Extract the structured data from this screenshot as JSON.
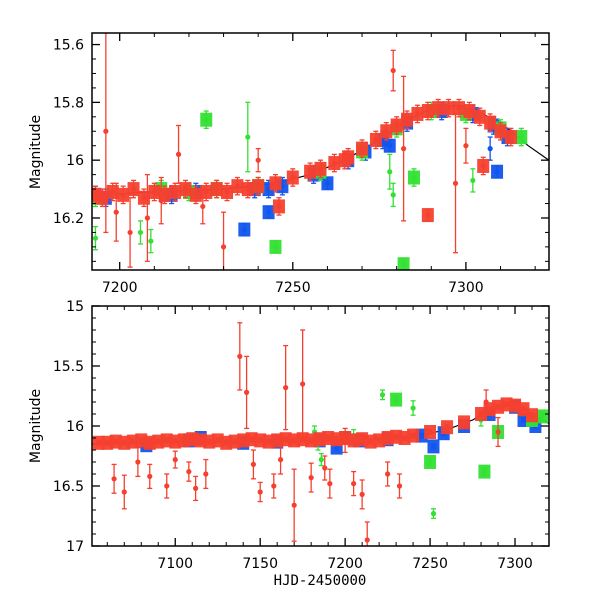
{
  "colors": {
    "series_red": "#F5402F",
    "series_blue": "#1155EE",
    "series_green": "#33E033",
    "model": "#000000",
    "axes": "#000000"
  },
  "chart_data": [
    {
      "type": "scatter",
      "title": "",
      "xlabel": "",
      "ylabel": "Magnitude",
      "xlim": [
        7192,
        7324
      ],
      "ylim": [
        16.38,
        15.56
      ],
      "y_inverted": true,
      "xticks": [
        7200,
        7250,
        7300
      ],
      "xtick_labels": [
        "7200",
        "7250",
        "7300"
      ],
      "yticks": [
        15.6,
        15.8,
        16,
        16.2
      ],
      "ytick_labels": [
        "15.6",
        "15.8",
        "16",
        "16.2"
      ],
      "grid": false,
      "legend": "none",
      "model": {
        "name": "model",
        "x": [
          7192,
          7210,
          7230,
          7245,
          7255,
          7265,
          7275,
          7282,
          7290,
          7298,
          7305,
          7312,
          7318,
          7324
        ],
        "y": [
          16.12,
          16.11,
          16.1,
          16.08,
          16.05,
          16.0,
          15.93,
          15.87,
          15.82,
          15.81,
          15.84,
          15.89,
          15.95,
          16.0
        ]
      },
      "series": [
        {
          "name": "red",
          "x": [
            7193,
            7195,
            7198,
            7201,
            7204,
            7207,
            7210,
            7213,
            7216,
            7219,
            7222,
            7225,
            7228,
            7231,
            7234,
            7237,
            7240,
            7245,
            7250,
            7255,
            7258,
            7262,
            7266,
            7270,
            7274,
            7277,
            7280,
            7283,
            7286,
            7289,
            7292,
            7295,
            7298,
            7301,
            7304,
            7307,
            7310,
            7313,
            7196,
            7199,
            7203,
            7208,
            7212,
            7217,
            7224,
            7230,
            7240,
            7246,
            7265,
            7279,
            7282,
            7289,
            7297,
            7300,
            7305
          ],
          "y": [
            16.12,
            16.13,
            16.11,
            16.12,
            16.1,
            16.13,
            16.11,
            16.12,
            16.11,
            16.1,
            16.12,
            16.11,
            16.1,
            16.11,
            16.09,
            16.1,
            16.09,
            16.08,
            16.06,
            16.04,
            16.03,
            16.01,
            15.99,
            15.96,
            15.93,
            15.9,
            15.88,
            15.86,
            15.84,
            15.83,
            15.82,
            15.82,
            15.82,
            15.83,
            15.85,
            15.87,
            15.9,
            15.92,
            15.9,
            16.18,
            16.25,
            16.2,
            16.14,
            15.98,
            16.16,
            16.3,
            16.0,
            16.16,
            16.0,
            15.69,
            15.96,
            16.19,
            16.08,
            15.95,
            16.02
          ],
          "err": [
            0.03,
            0.03,
            0.03,
            0.03,
            0.03,
            0.03,
            0.03,
            0.03,
            0.03,
            0.03,
            0.03,
            0.03,
            0.03,
            0.03,
            0.03,
            0.03,
            0.03,
            0.03,
            0.03,
            0.03,
            0.03,
            0.03,
            0.03,
            0.03,
            0.03,
            0.03,
            0.03,
            0.03,
            0.03,
            0.03,
            0.03,
            0.03,
            0.03,
            0.03,
            0.03,
            0.03,
            0.03,
            0.03,
            0.35,
            0.1,
            0.12,
            0.15,
            0.08,
            0.1,
            0.06,
            0.12,
            0.04,
            0.03,
            0.03,
            0.07,
            0.25,
            0.02,
            0.24,
            0.06,
            0.03
          ]
        },
        {
          "name": "blue",
          "x": [
            7193,
            7196,
            7215,
            7222,
            7239,
            7243,
            7247,
            7256,
            7266,
            7271,
            7276,
            7283,
            7293,
            7302,
            7308,
            7312,
            7236,
            7243,
            7260,
            7278,
            7307,
            7309
          ],
          "y": [
            16.12,
            16.13,
            16.12,
            16.11,
            16.1,
            16.1,
            16.09,
            16.05,
            16.0,
            15.97,
            15.93,
            15.87,
            15.83,
            15.84,
            15.88,
            15.92,
            16.24,
            16.18,
            16.08,
            15.95,
            15.96,
            16.04
          ],
          "err": [
            0.03,
            0.03,
            0.03,
            0.03,
            0.03,
            0.03,
            0.03,
            0.03,
            0.03,
            0.03,
            0.03,
            0.03,
            0.03,
            0.03,
            0.03,
            0.03,
            0.02,
            0.02,
            0.02,
            0.02,
            0.04,
            0.02
          ]
        },
        {
          "name": "green",
          "x": [
            7193,
            7212,
            7220,
            7228,
            7240,
            7258,
            7270,
            7280,
            7290,
            7300,
            7310,
            7316,
            7193,
            7206,
            7209,
            7225,
            7237,
            7245,
            7278,
            7279,
            7282,
            7285,
            7302
          ],
          "y": [
            16.13,
            16.1,
            16.11,
            16.1,
            16.09,
            16.04,
            15.97,
            15.89,
            15.83,
            15.84,
            15.89,
            15.92,
            16.27,
            16.25,
            16.28,
            15.86,
            15.92,
            16.3,
            16.04,
            16.12,
            16.36,
            16.06,
            16.07
          ],
          "err": [
            0.03,
            0.03,
            0.03,
            0.03,
            0.03,
            0.03,
            0.03,
            0.03,
            0.03,
            0.03,
            0.03,
            0.03,
            0.04,
            0.04,
            0.04,
            0.03,
            0.12,
            0.02,
            0.06,
            0.04,
            0.02,
            0.03,
            0.04
          ]
        }
      ]
    },
    {
      "type": "scatter",
      "title": "",
      "xlabel": "HJD-2450000",
      "ylabel": "Magnitude",
      "xlim": [
        7051,
        7320
      ],
      "ylim": [
        17,
        15
      ],
      "y_inverted": true,
      "xticks": [
        7100,
        7150,
        7200,
        7250,
        7300
      ],
      "xtick_labels": [
        "7100",
        "7150",
        "7200",
        "7250",
        "7300"
      ],
      "yticks": [
        15,
        15.5,
        16,
        16.5,
        17
      ],
      "ytick_labels": [
        "15",
        "15.5",
        "16",
        "16.5",
        "17"
      ],
      "grid": false,
      "legend": "none",
      "model": {
        "name": "model",
        "x": [
          7051,
          7100,
          7150,
          7200,
          7240,
          7260,
          7275,
          7285,
          7298,
          7310,
          7320
        ],
        "y": [
          16.15,
          16.14,
          16.13,
          16.12,
          16.09,
          16.03,
          15.95,
          15.87,
          15.83,
          15.9,
          15.98
        ]
      },
      "series": [
        {
          "name": "red",
          "x": [
            7055,
            7060,
            7065,
            7070,
            7075,
            7080,
            7085,
            7090,
            7095,
            7100,
            7105,
            7110,
            7115,
            7120,
            7125,
            7130,
            7135,
            7140,
            7145,
            7150,
            7155,
            7160,
            7165,
            7170,
            7175,
            7180,
            7185,
            7190,
            7195,
            7200,
            7205,
            7210,
            7215,
            7220,
            7225,
            7230,
            7235,
            7240,
            7250,
            7260,
            7270,
            7280,
            7285,
            7290,
            7295,
            7300,
            7305,
            7310,
            7064,
            7070,
            7078,
            7085,
            7095,
            7100,
            7108,
            7112,
            7118,
            7138,
            7142,
            7146,
            7150,
            7158,
            7162,
            7165,
            7170,
            7175,
            7180,
            7188,
            7191,
            7200,
            7205,
            7210,
            7213,
            7225,
            7232,
            7283,
            7290
          ],
          "y": [
            16.14,
            16.14,
            16.13,
            16.14,
            16.13,
            16.12,
            16.14,
            16.13,
            16.12,
            16.13,
            16.12,
            16.11,
            16.12,
            16.13,
            16.12,
            16.14,
            16.13,
            16.12,
            16.11,
            16.12,
            16.13,
            16.12,
            16.11,
            16.12,
            16.11,
            16.12,
            16.11,
            16.1,
            16.11,
            16.1,
            16.12,
            16.11,
            16.13,
            16.12,
            16.1,
            16.09,
            16.1,
            16.08,
            16.05,
            16.01,
            15.97,
            15.9,
            15.86,
            15.84,
            15.82,
            15.83,
            15.86,
            15.91,
            16.44,
            16.55,
            16.3,
            16.42,
            16.5,
            16.28,
            16.38,
            16.52,
            16.4,
            15.42,
            15.72,
            16.32,
            16.55,
            16.5,
            16.28,
            15.68,
            16.66,
            15.65,
            16.43,
            16.35,
            16.48,
            16.12,
            16.48,
            16.57,
            16.95,
            16.4,
            16.5,
            15.8,
            16.05
          ],
          "err": [
            0.02,
            0.02,
            0.02,
            0.02,
            0.02,
            0.02,
            0.02,
            0.02,
            0.02,
            0.02,
            0.02,
            0.02,
            0.02,
            0.02,
            0.02,
            0.02,
            0.02,
            0.02,
            0.02,
            0.02,
            0.02,
            0.02,
            0.02,
            0.02,
            0.02,
            0.02,
            0.02,
            0.02,
            0.02,
            0.02,
            0.02,
            0.02,
            0.02,
            0.02,
            0.02,
            0.02,
            0.02,
            0.02,
            0.02,
            0.02,
            0.02,
            0.02,
            0.02,
            0.02,
            0.02,
            0.02,
            0.02,
            0.02,
            0.12,
            0.14,
            0.12,
            0.1,
            0.1,
            0.07,
            0.08,
            0.1,
            0.12,
            0.28,
            0.3,
            0.12,
            0.08,
            0.1,
            0.12,
            0.35,
            0.3,
            0.45,
            0.12,
            0.1,
            0.12,
            0.1,
            0.1,
            0.12,
            0.15,
            0.1,
            0.1,
            0.1,
            0.12
          ]
        },
        {
          "name": "blue",
          "x": [
            7083,
            7108,
            7115,
            7140,
            7160,
            7185,
            7195,
            7200,
            7208,
            7225,
            7245,
            7252,
            7258,
            7270,
            7285,
            7300,
            7305,
            7312
          ],
          "y": [
            16.16,
            16.12,
            16.1,
            16.14,
            16.13,
            16.12,
            16.18,
            16.1,
            16.12,
            16.11,
            16.08,
            16.17,
            16.06,
            16.0,
            15.9,
            15.84,
            15.95,
            16.0
          ],
          "err": [
            0.02,
            0.02,
            0.02,
            0.02,
            0.02,
            0.02,
            0.02,
            0.02,
            0.02,
            0.02,
            0.02,
            0.02,
            0.02,
            0.02,
            0.02,
            0.02,
            0.02,
            0.02
          ]
        },
        {
          "name": "green",
          "x": [
            7182,
            7184,
            7186,
            7198,
            7205,
            7222,
            7230,
            7240,
            7250,
            7252,
            7280,
            7282,
            7290,
            7310,
            7316
          ],
          "y": [
            16.05,
            16.15,
            16.28,
            16.1,
            16.08,
            15.74,
            15.78,
            15.85,
            16.3,
            16.73,
            15.95,
            16.38,
            16.05,
            15.95,
            15.92
          ],
          "err": [
            0.05,
            0.05,
            0.05,
            0.05,
            0.05,
            0.04,
            0.03,
            0.06,
            0.03,
            0.04,
            0.05,
            0.03,
            0.03,
            0.03,
            0.03
          ]
        }
      ]
    }
  ]
}
